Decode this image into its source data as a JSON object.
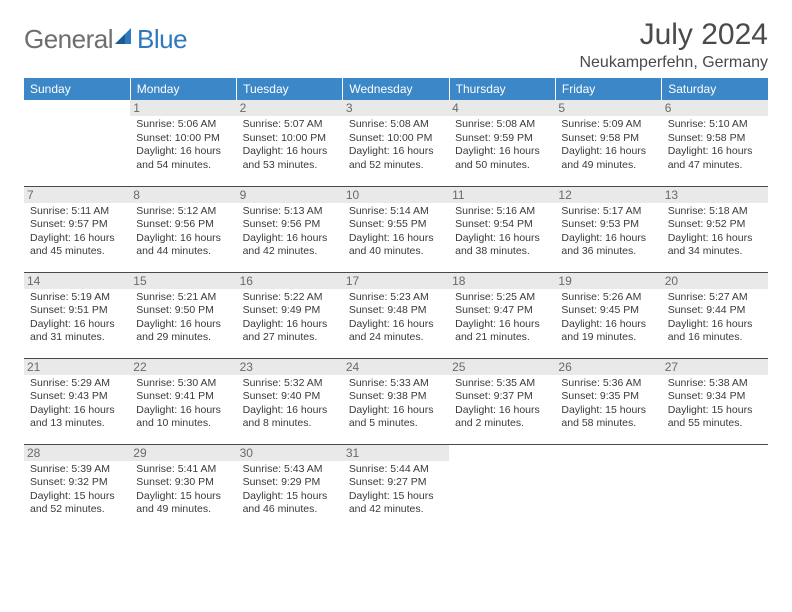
{
  "logo": {
    "general": "General",
    "blue": "Blue"
  },
  "title": {
    "month_year": "July 2024",
    "location": "Neukamperfehn, Germany"
  },
  "colors": {
    "header_bg": "#3b87c8",
    "header_text": "#ffffff",
    "daynum_bg": "#e9e9e9",
    "daynum_text": "#6a6a6a",
    "body_text": "#3a3a3a",
    "border": "#4a4a4a",
    "logo_gray": "#6e6e6e",
    "logo_blue": "#2f7abf"
  },
  "weekdays": [
    "Sunday",
    "Monday",
    "Tuesday",
    "Wednesday",
    "Thursday",
    "Friday",
    "Saturday"
  ],
  "weeks": [
    [
      {
        "day": "",
        "sunrise": "",
        "sunset": "",
        "daylight": ""
      },
      {
        "day": "1",
        "sunrise": "Sunrise: 5:06 AM",
        "sunset": "Sunset: 10:00 PM",
        "daylight": "Daylight: 16 hours and 54 minutes."
      },
      {
        "day": "2",
        "sunrise": "Sunrise: 5:07 AM",
        "sunset": "Sunset: 10:00 PM",
        "daylight": "Daylight: 16 hours and 53 minutes."
      },
      {
        "day": "3",
        "sunrise": "Sunrise: 5:08 AM",
        "sunset": "Sunset: 10:00 PM",
        "daylight": "Daylight: 16 hours and 52 minutes."
      },
      {
        "day": "4",
        "sunrise": "Sunrise: 5:08 AM",
        "sunset": "Sunset: 9:59 PM",
        "daylight": "Daylight: 16 hours and 50 minutes."
      },
      {
        "day": "5",
        "sunrise": "Sunrise: 5:09 AM",
        "sunset": "Sunset: 9:58 PM",
        "daylight": "Daylight: 16 hours and 49 minutes."
      },
      {
        "day": "6",
        "sunrise": "Sunrise: 5:10 AM",
        "sunset": "Sunset: 9:58 PM",
        "daylight": "Daylight: 16 hours and 47 minutes."
      }
    ],
    [
      {
        "day": "7",
        "sunrise": "Sunrise: 5:11 AM",
        "sunset": "Sunset: 9:57 PM",
        "daylight": "Daylight: 16 hours and 45 minutes."
      },
      {
        "day": "8",
        "sunrise": "Sunrise: 5:12 AM",
        "sunset": "Sunset: 9:56 PM",
        "daylight": "Daylight: 16 hours and 44 minutes."
      },
      {
        "day": "9",
        "sunrise": "Sunrise: 5:13 AM",
        "sunset": "Sunset: 9:56 PM",
        "daylight": "Daylight: 16 hours and 42 minutes."
      },
      {
        "day": "10",
        "sunrise": "Sunrise: 5:14 AM",
        "sunset": "Sunset: 9:55 PM",
        "daylight": "Daylight: 16 hours and 40 minutes."
      },
      {
        "day": "11",
        "sunrise": "Sunrise: 5:16 AM",
        "sunset": "Sunset: 9:54 PM",
        "daylight": "Daylight: 16 hours and 38 minutes."
      },
      {
        "day": "12",
        "sunrise": "Sunrise: 5:17 AM",
        "sunset": "Sunset: 9:53 PM",
        "daylight": "Daylight: 16 hours and 36 minutes."
      },
      {
        "day": "13",
        "sunrise": "Sunrise: 5:18 AM",
        "sunset": "Sunset: 9:52 PM",
        "daylight": "Daylight: 16 hours and 34 minutes."
      }
    ],
    [
      {
        "day": "14",
        "sunrise": "Sunrise: 5:19 AM",
        "sunset": "Sunset: 9:51 PM",
        "daylight": "Daylight: 16 hours and 31 minutes."
      },
      {
        "day": "15",
        "sunrise": "Sunrise: 5:21 AM",
        "sunset": "Sunset: 9:50 PM",
        "daylight": "Daylight: 16 hours and 29 minutes."
      },
      {
        "day": "16",
        "sunrise": "Sunrise: 5:22 AM",
        "sunset": "Sunset: 9:49 PM",
        "daylight": "Daylight: 16 hours and 27 minutes."
      },
      {
        "day": "17",
        "sunrise": "Sunrise: 5:23 AM",
        "sunset": "Sunset: 9:48 PM",
        "daylight": "Daylight: 16 hours and 24 minutes."
      },
      {
        "day": "18",
        "sunrise": "Sunrise: 5:25 AM",
        "sunset": "Sunset: 9:47 PM",
        "daylight": "Daylight: 16 hours and 21 minutes."
      },
      {
        "day": "19",
        "sunrise": "Sunrise: 5:26 AM",
        "sunset": "Sunset: 9:45 PM",
        "daylight": "Daylight: 16 hours and 19 minutes."
      },
      {
        "day": "20",
        "sunrise": "Sunrise: 5:27 AM",
        "sunset": "Sunset: 9:44 PM",
        "daylight": "Daylight: 16 hours and 16 minutes."
      }
    ],
    [
      {
        "day": "21",
        "sunrise": "Sunrise: 5:29 AM",
        "sunset": "Sunset: 9:43 PM",
        "daylight": "Daylight: 16 hours and 13 minutes."
      },
      {
        "day": "22",
        "sunrise": "Sunrise: 5:30 AM",
        "sunset": "Sunset: 9:41 PM",
        "daylight": "Daylight: 16 hours and 10 minutes."
      },
      {
        "day": "23",
        "sunrise": "Sunrise: 5:32 AM",
        "sunset": "Sunset: 9:40 PM",
        "daylight": "Daylight: 16 hours and 8 minutes."
      },
      {
        "day": "24",
        "sunrise": "Sunrise: 5:33 AM",
        "sunset": "Sunset: 9:38 PM",
        "daylight": "Daylight: 16 hours and 5 minutes."
      },
      {
        "day": "25",
        "sunrise": "Sunrise: 5:35 AM",
        "sunset": "Sunset: 9:37 PM",
        "daylight": "Daylight: 16 hours and 2 minutes."
      },
      {
        "day": "26",
        "sunrise": "Sunrise: 5:36 AM",
        "sunset": "Sunset: 9:35 PM",
        "daylight": "Daylight: 15 hours and 58 minutes."
      },
      {
        "day": "27",
        "sunrise": "Sunrise: 5:38 AM",
        "sunset": "Sunset: 9:34 PM",
        "daylight": "Daylight: 15 hours and 55 minutes."
      }
    ],
    [
      {
        "day": "28",
        "sunrise": "Sunrise: 5:39 AM",
        "sunset": "Sunset: 9:32 PM",
        "daylight": "Daylight: 15 hours and 52 minutes."
      },
      {
        "day": "29",
        "sunrise": "Sunrise: 5:41 AM",
        "sunset": "Sunset: 9:30 PM",
        "daylight": "Daylight: 15 hours and 49 minutes."
      },
      {
        "day": "30",
        "sunrise": "Sunrise: 5:43 AM",
        "sunset": "Sunset: 9:29 PM",
        "daylight": "Daylight: 15 hours and 46 minutes."
      },
      {
        "day": "31",
        "sunrise": "Sunrise: 5:44 AM",
        "sunset": "Sunset: 9:27 PM",
        "daylight": "Daylight: 15 hours and 42 minutes."
      },
      {
        "day": "",
        "sunrise": "",
        "sunset": "",
        "daylight": ""
      },
      {
        "day": "",
        "sunrise": "",
        "sunset": "",
        "daylight": ""
      },
      {
        "day": "",
        "sunrise": "",
        "sunset": "",
        "daylight": ""
      }
    ]
  ]
}
